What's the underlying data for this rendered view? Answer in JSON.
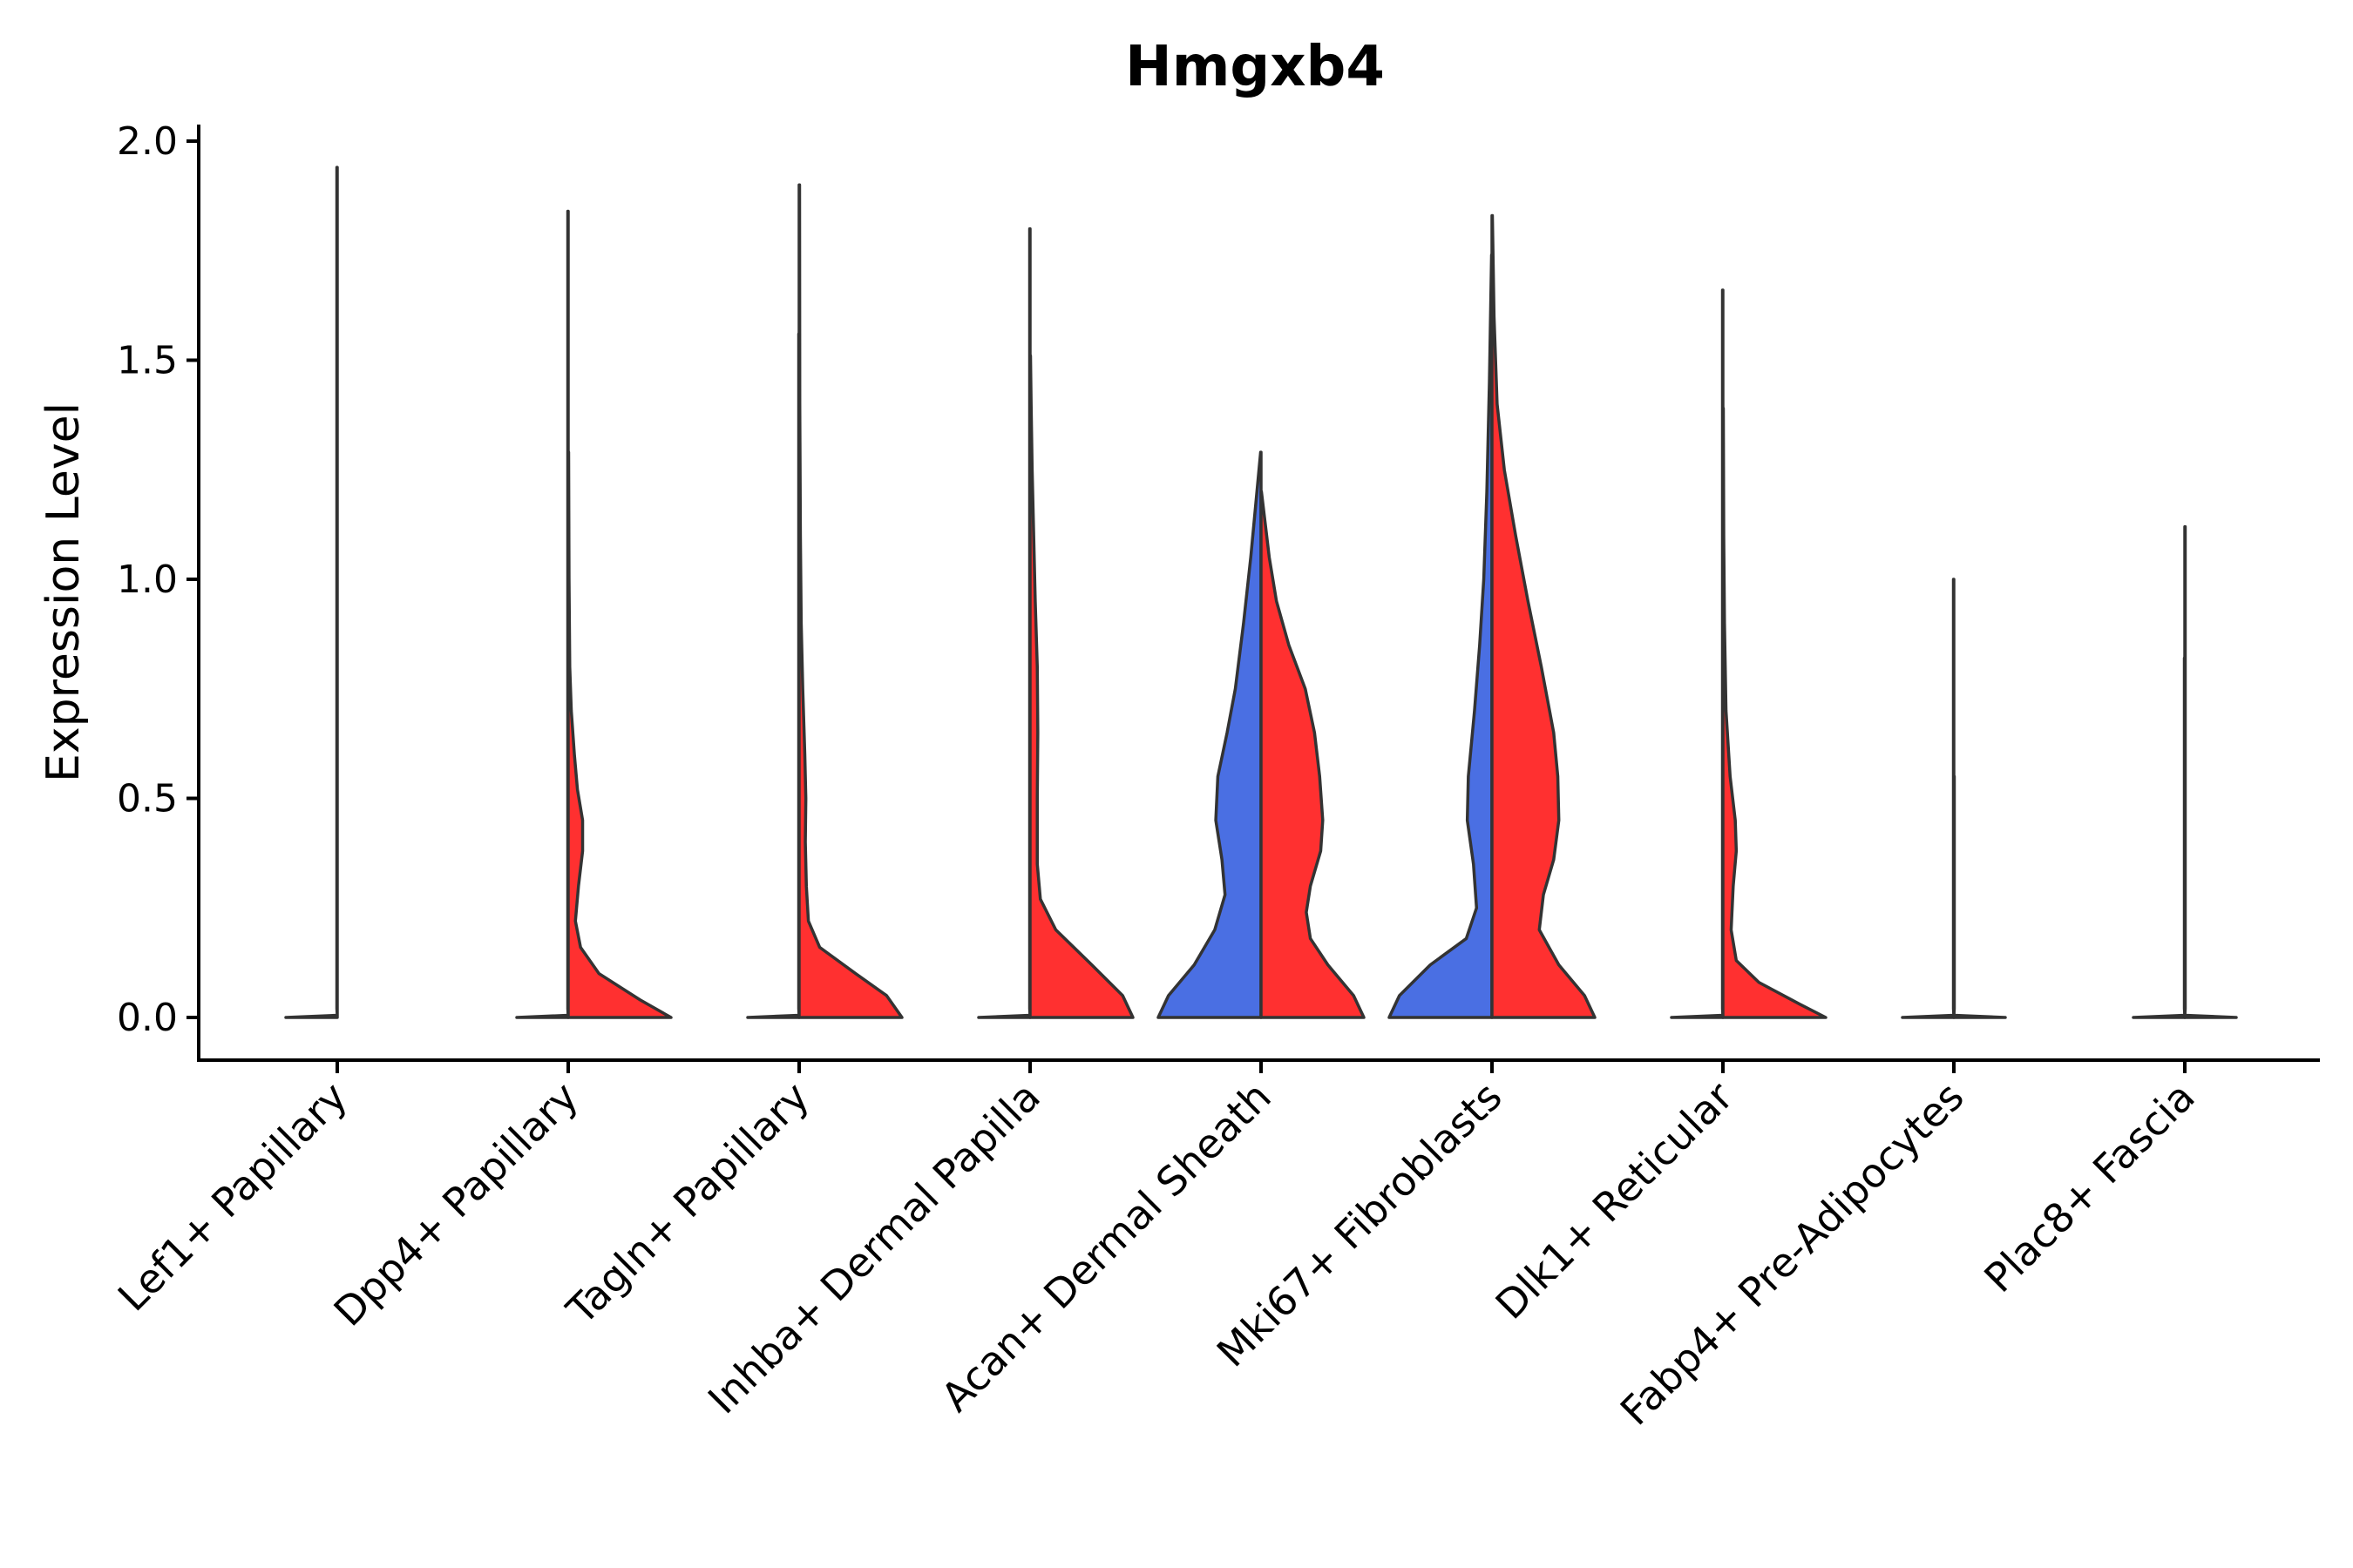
{
  "chart_data": {
    "type": "violin",
    "title": "Hmgxb4",
    "xlabel": "",
    "ylabel": "Expression Level",
    "ylim": [
      -0.1,
      2.05
    ],
    "yticks": [
      0.0,
      0.5,
      1.0,
      1.5,
      2.0
    ],
    "ytick_labels": [
      "0.0",
      "0.5",
      "1.0",
      "1.5",
      "2.0"
    ],
    "categories": [
      "Lef1+ Papillary",
      "Dpp4+ Papillary",
      "Tagln+ Papillary",
      "Inhba+ Dermal Papilla",
      "Acan+ Dermal Sheath",
      "Mki67+ Fibroblasts",
      "Dlk1+ Reticular",
      "Fabp4+ Pre-Adipocytes",
      "Plac8+ Fascia"
    ],
    "colors": {
      "blue": "#4a6fe3",
      "red": "#ff3030",
      "outline": "#333333"
    },
    "violins": [
      {
        "category": "Lef1+ Papillary",
        "side": "left",
        "color": "blue",
        "max": 1.94,
        "profile": [
          [
            0,
            0.5
          ],
          [
            0.005,
            0.0
          ],
          [
            0.02,
            0.004
          ],
          [
            1.94,
            0.004
          ]
        ]
      },
      {
        "category": "Lef1+ Papillary",
        "side": "right",
        "color": "red",
        "max": 0.0,
        "profile": [
          [
            0,
            0.0
          ]
        ]
      },
      {
        "category": "Dpp4+ Papillary",
        "side": "left",
        "color": "blue",
        "max": 1.84,
        "profile": [
          [
            0,
            0.5
          ],
          [
            0.005,
            0.0
          ],
          [
            0.02,
            0.004
          ],
          [
            1.84,
            0.004
          ]
        ]
      },
      {
        "category": "Dpp4+ Papillary",
        "side": "right",
        "color": "red",
        "max": 1.29,
        "profile": [
          [
            0,
            1.0
          ],
          [
            0.04,
            0.7
          ],
          [
            0.1,
            0.3
          ],
          [
            0.16,
            0.12
          ],
          [
            0.22,
            0.07
          ],
          [
            0.3,
            0.1
          ],
          [
            0.38,
            0.14
          ],
          [
            0.45,
            0.14
          ],
          [
            0.52,
            0.09
          ],
          [
            0.6,
            0.06
          ],
          [
            0.7,
            0.03
          ],
          [
            0.8,
            0.015
          ],
          [
            1.0,
            0.008
          ],
          [
            1.29,
            0.004
          ]
        ]
      },
      {
        "category": "Tagln+ Papillary",
        "side": "left",
        "color": "blue",
        "max": 1.56,
        "profile": [
          [
            0,
            0.5
          ],
          [
            0.005,
            0.0
          ],
          [
            0.02,
            0.004
          ],
          [
            1.56,
            0.004
          ]
        ]
      },
      {
        "category": "Tagln+ Papillary",
        "side": "right",
        "color": "red",
        "max": 1.9,
        "profile": [
          [
            0,
            1.0
          ],
          [
            0.05,
            0.85
          ],
          [
            0.1,
            0.55
          ],
          [
            0.16,
            0.2
          ],
          [
            0.22,
            0.09
          ],
          [
            0.3,
            0.07
          ],
          [
            0.4,
            0.06
          ],
          [
            0.5,
            0.065
          ],
          [
            0.6,
            0.055
          ],
          [
            0.75,
            0.035
          ],
          [
            0.9,
            0.02
          ],
          [
            1.1,
            0.012
          ],
          [
            1.4,
            0.006
          ],
          [
            1.9,
            0.004
          ]
        ]
      },
      {
        "category": "Inhba+ Dermal Papilla",
        "side": "left",
        "color": "blue",
        "max": 1.8,
        "profile": [
          [
            0,
            0.5
          ],
          [
            0.005,
            0.0
          ],
          [
            0.02,
            0.004
          ],
          [
            1.8,
            0.004
          ]
        ]
      },
      {
        "category": "Inhba+ Dermal Papilla",
        "side": "right",
        "color": "red",
        "max": 1.51,
        "profile": [
          [
            0,
            1.0
          ],
          [
            0.05,
            0.9
          ],
          [
            0.12,
            0.6
          ],
          [
            0.2,
            0.25
          ],
          [
            0.27,
            0.1
          ],
          [
            0.35,
            0.07
          ],
          [
            0.5,
            0.07
          ],
          [
            0.65,
            0.075
          ],
          [
            0.8,
            0.07
          ],
          [
            0.95,
            0.05
          ],
          [
            1.1,
            0.035
          ],
          [
            1.25,
            0.02
          ],
          [
            1.4,
            0.01
          ],
          [
            1.51,
            0.004
          ]
        ]
      },
      {
        "category": "Acan+ Dermal Sheath",
        "side": "left",
        "color": "blue",
        "max": 1.29,
        "profile": [
          [
            0,
            1.0
          ],
          [
            0.05,
            0.9
          ],
          [
            0.12,
            0.65
          ],
          [
            0.2,
            0.45
          ],
          [
            0.28,
            0.35
          ],
          [
            0.36,
            0.38
          ],
          [
            0.45,
            0.44
          ],
          [
            0.55,
            0.42
          ],
          [
            0.65,
            0.33
          ],
          [
            0.75,
            0.25
          ],
          [
            0.9,
            0.17
          ],
          [
            1.05,
            0.1
          ],
          [
            1.2,
            0.04
          ],
          [
            1.29,
            0.004
          ]
        ]
      },
      {
        "category": "Acan+ Dermal Sheath",
        "side": "right",
        "color": "red",
        "max": 1.2,
        "profile": [
          [
            0,
            1.0
          ],
          [
            0.05,
            0.9
          ],
          [
            0.12,
            0.65
          ],
          [
            0.18,
            0.48
          ],
          [
            0.24,
            0.44
          ],
          [
            0.3,
            0.48
          ],
          [
            0.38,
            0.58
          ],
          [
            0.45,
            0.6
          ],
          [
            0.55,
            0.57
          ],
          [
            0.65,
            0.52
          ],
          [
            0.75,
            0.43
          ],
          [
            0.85,
            0.27
          ],
          [
            0.95,
            0.15
          ],
          [
            1.05,
            0.08
          ],
          [
            1.2,
            0.004
          ]
        ]
      },
      {
        "category": "Mki67+ Fibroblasts",
        "side": "left",
        "color": "blue",
        "max": 1.74,
        "profile": [
          [
            0,
            1.0
          ],
          [
            0.05,
            0.9
          ],
          [
            0.12,
            0.6
          ],
          [
            0.18,
            0.25
          ],
          [
            0.25,
            0.15
          ],
          [
            0.35,
            0.18
          ],
          [
            0.45,
            0.24
          ],
          [
            0.55,
            0.23
          ],
          [
            0.7,
            0.17
          ],
          [
            0.85,
            0.12
          ],
          [
            1.0,
            0.08
          ],
          [
            1.2,
            0.05
          ],
          [
            1.45,
            0.025
          ],
          [
            1.74,
            0.004
          ]
        ]
      },
      {
        "category": "Mki67+ Fibroblasts",
        "side": "right",
        "color": "red",
        "max": 1.83,
        "profile": [
          [
            0,
            1.0
          ],
          [
            0.05,
            0.9
          ],
          [
            0.12,
            0.65
          ],
          [
            0.2,
            0.46
          ],
          [
            0.28,
            0.5
          ],
          [
            0.36,
            0.6
          ],
          [
            0.45,
            0.65
          ],
          [
            0.55,
            0.64
          ],
          [
            0.65,
            0.6
          ],
          [
            0.8,
            0.48
          ],
          [
            0.95,
            0.35
          ],
          [
            1.1,
            0.23
          ],
          [
            1.25,
            0.12
          ],
          [
            1.4,
            0.05
          ],
          [
            1.6,
            0.02
          ],
          [
            1.83,
            0.004
          ]
        ]
      },
      {
        "category": "Dlk1+ Reticular",
        "side": "left",
        "color": "blue",
        "max": 1.66,
        "profile": [
          [
            0,
            0.5
          ],
          [
            0.005,
            0.0
          ],
          [
            0.02,
            0.004
          ],
          [
            1.66,
            0.004
          ]
        ]
      },
      {
        "category": "Dlk1+ Reticular",
        "side": "right",
        "color": "red",
        "max": 1.39,
        "profile": [
          [
            0,
            1.0
          ],
          [
            0.03,
            0.75
          ],
          [
            0.08,
            0.35
          ],
          [
            0.13,
            0.13
          ],
          [
            0.2,
            0.08
          ],
          [
            0.3,
            0.1
          ],
          [
            0.38,
            0.13
          ],
          [
            0.45,
            0.12
          ],
          [
            0.55,
            0.07
          ],
          [
            0.7,
            0.03
          ],
          [
            0.9,
            0.015
          ],
          [
            1.1,
            0.008
          ],
          [
            1.39,
            0.004
          ]
        ]
      },
      {
        "category": "Fabp4+ Pre-Adipocytes",
        "side": "left",
        "color": "blue",
        "max": 1.0,
        "profile": [
          [
            0,
            0.5
          ],
          [
            0.005,
            0.0
          ],
          [
            0.02,
            0.004
          ],
          [
            1.0,
            0.004
          ]
        ]
      },
      {
        "category": "Fabp4+ Pre-Adipocytes",
        "side": "right",
        "color": "red",
        "max": 0.55,
        "profile": [
          [
            0,
            0.5
          ],
          [
            0.005,
            0.0
          ],
          [
            0.02,
            0.004
          ],
          [
            0.55,
            0.004
          ]
        ]
      },
      {
        "category": "Plac8+ Fascia",
        "side": "left",
        "color": "blue",
        "max": 0.82,
        "profile": [
          [
            0,
            0.5
          ],
          [
            0.005,
            0.0
          ],
          [
            0.02,
            0.004
          ],
          [
            0.82,
            0.004
          ]
        ]
      },
      {
        "category": "Plac8+ Fascia",
        "side": "right",
        "color": "red",
        "max": 1.12,
        "profile": [
          [
            0,
            0.5
          ],
          [
            0.005,
            0.0
          ],
          [
            0.02,
            0.004
          ],
          [
            1.12,
            0.004
          ]
        ]
      }
    ]
  }
}
